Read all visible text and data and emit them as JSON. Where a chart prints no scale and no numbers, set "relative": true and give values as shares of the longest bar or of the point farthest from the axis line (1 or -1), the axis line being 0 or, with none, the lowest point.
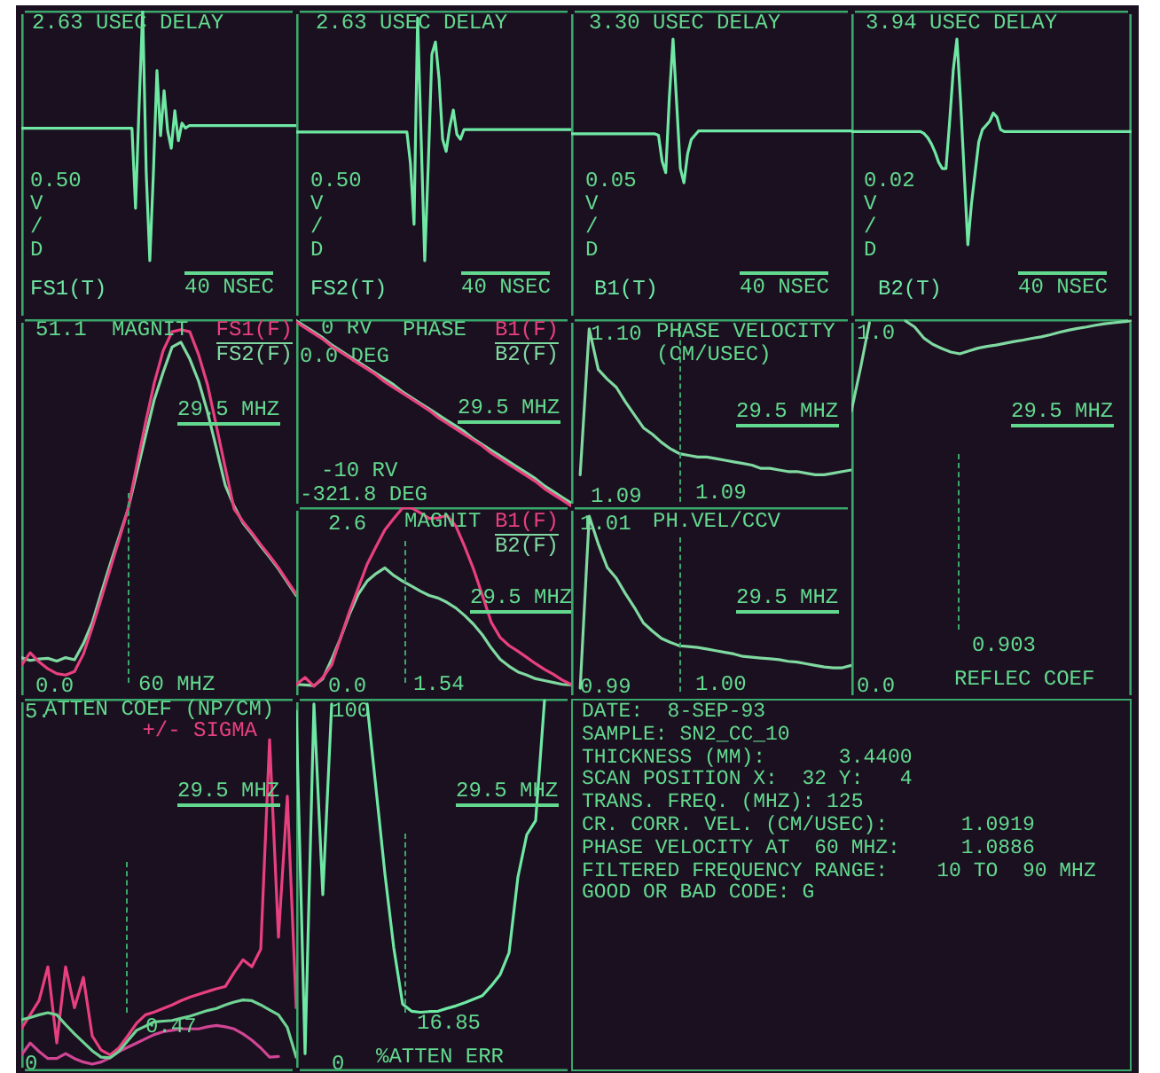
{
  "chart_data": [
    {
      "type": "line",
      "title": "2.63 USEC DELAY",
      "relative": true,
      "tick_labels": false,
      "categories": [
        null,
        null,
        null,
        null,
        null,
        null,
        null,
        null,
        null,
        null,
        null,
        null,
        null,
        null,
        null,
        null,
        null,
        null,
        null,
        null,
        null,
        null,
        null,
        null,
        null,
        null,
        null,
        null,
        null,
        null,
        null,
        null,
        null,
        null,
        null,
        null,
        null,
        null,
        null,
        null,
        null,
        null,
        null,
        null,
        null,
        null,
        null,
        null,
        null,
        null,
        null,
        null,
        null,
        null,
        null,
        null,
        null,
        null,
        null,
        null,
        null,
        null,
        null,
        null,
        null,
        null,
        null,
        null,
        null,
        null,
        null,
        null,
        null,
        null,
        null,
        null,
        null,
        null
      ],
      "series": [
        {
          "name": "FS1(T)",
          "color": "#6fe8a4",
          "values": [
            0.53,
            0.53,
            0.53,
            0.53,
            0.53,
            0.53,
            0.53,
            0.53,
            0.53,
            0.53,
            0.53,
            0.53,
            0.53,
            0.53,
            0.53,
            0.53,
            0.53,
            0.53,
            0.53,
            0.53,
            0.53,
            0.53,
            0.53,
            0.53,
            0.53,
            0.53,
            0.53,
            0.53,
            0.53,
            0.53,
            0.53,
            0.53,
            0.21,
            0.62,
            1,
            0.35,
            0,
            0.35,
            0.76,
            0.5,
            0.68,
            0.52,
            0.45,
            0.6,
            0.48,
            0.55,
            0.53,
            0.54,
            0.54,
            0.54,
            0.54,
            0.54,
            0.54,
            0.54,
            0.54,
            0.54,
            0.54,
            0.54,
            0.54,
            0.54,
            0.54,
            0.54,
            0.54,
            0.54,
            0.54,
            0.54,
            0.54,
            0.54,
            0.54,
            0.54,
            0.54,
            0.54,
            0.54,
            0.54,
            0.54,
            0.54,
            0.54,
            0.54
          ]
        }
      ],
      "annotations": [
        "0.50\nV\n/\nD",
        "40 NSEC"
      ]
    },
    {
      "type": "line",
      "title": "2.63 USEC DELAY",
      "relative": true,
      "tick_labels": false,
      "categories": [
        null,
        null,
        null,
        null,
        null,
        null,
        null,
        null,
        null,
        null,
        null,
        null,
        null,
        null,
        null,
        null,
        null,
        null,
        null,
        null,
        null,
        null,
        null,
        null,
        null,
        null,
        null,
        null,
        null,
        null,
        null,
        null,
        null,
        null,
        null,
        null,
        null,
        null,
        null,
        null,
        null,
        null,
        null,
        null,
        null,
        null,
        null,
        null,
        null,
        null,
        null,
        null,
        null,
        null,
        null,
        null,
        null,
        null,
        null,
        null,
        null,
        null,
        null,
        null,
        null,
        null,
        null,
        null,
        null,
        null,
        null,
        null,
        null,
        null,
        null,
        null,
        null,
        null
      ],
      "series": [
        {
          "name": "FS2(T)",
          "color": "#6fe8a4",
          "values": [
            0.53,
            0.53,
            0.53,
            0.53,
            0.53,
            0.53,
            0.53,
            0.53,
            0.53,
            0.53,
            0.53,
            0.53,
            0.53,
            0.53,
            0.53,
            0.53,
            0.53,
            0.53,
            0.53,
            0.53,
            0.53,
            0.53,
            0.53,
            0.53,
            0.53,
            0.53,
            0.53,
            0.53,
            0.53,
            0.53,
            0.53,
            0.53,
            0.4,
            0.15,
            1,
            0.5,
            0,
            0.4,
            0.85,
            0.9,
            0.75,
            0.5,
            0.45,
            0.55,
            0.62,
            0.52,
            0.5,
            0.54,
            0.54,
            0.54,
            0.54,
            0.54,
            0.54,
            0.54,
            0.54,
            0.54,
            0.54,
            0.54,
            0.54,
            0.54,
            0.54,
            0.54,
            0.54,
            0.54,
            0.54,
            0.54,
            0.54,
            0.54,
            0.54,
            0.54,
            0.54,
            0.54,
            0.54,
            0.54,
            0.54,
            0.54,
            0.54,
            0.54
          ]
        }
      ],
      "annotations": [
        "0.50\nV\n/\nD",
        "40 NSEC"
      ]
    },
    {
      "type": "line",
      "title": "3.30 USEC DELAY",
      "relative": true,
      "tick_labels": false,
      "categories": [
        null,
        null,
        null,
        null,
        null,
        null,
        null,
        null,
        null,
        null,
        null,
        null,
        null,
        null,
        null,
        null,
        null,
        null,
        null,
        null,
        null,
        null,
        null,
        null,
        null,
        null,
        null,
        null,
        null,
        null,
        null,
        null,
        null,
        null,
        null,
        null,
        null,
        null,
        null,
        null,
        null,
        null,
        null,
        null,
        null,
        null,
        null,
        null,
        null,
        null,
        null,
        null,
        null,
        null,
        null,
        null,
        null,
        null,
        null,
        null,
        null,
        null,
        null,
        null,
        null,
        null,
        null,
        null,
        null,
        null,
        null,
        null,
        null,
        null,
        null,
        null,
        null,
        null
      ],
      "series": [
        {
          "name": "B1(T)",
          "color": "#6fe8a4",
          "values": [
            0.34,
            0.34,
            0.34,
            0.34,
            0.34,
            0.34,
            0.34,
            0.34,
            0.34,
            0.34,
            0.34,
            0.34,
            0.34,
            0.34,
            0.34,
            0.34,
            0.34,
            0.34,
            0.34,
            0.34,
            0.34,
            0.34,
            0.34,
            0.34,
            0.33,
            0.15,
            0.07,
            0.6,
            1,
            0.55,
            0.1,
            0,
            0.2,
            0.3,
            0.33,
            0.36,
            0.36,
            0.36,
            0.36,
            0.36,
            0.36,
            0.36,
            0.36,
            0.36,
            0.36,
            0.36,
            0.36,
            0.36,
            0.36,
            0.36,
            0.36,
            0.36,
            0.36,
            0.36,
            0.36,
            0.36,
            0.36,
            0.36,
            0.36,
            0.36,
            0.36,
            0.36,
            0.36,
            0.36,
            0.36,
            0.36,
            0.36,
            0.36,
            0.36,
            0.36,
            0.36,
            0.36,
            0.36,
            0.36,
            0.36,
            0.36,
            0.36,
            0.36
          ]
        }
      ],
      "annotations": [
        "0.05\nV\n/\nD",
        "40 NSEC"
      ]
    },
    {
      "type": "line",
      "title": "3.94 USEC DELAY",
      "relative": true,
      "tick_labels": false,
      "categories": [
        null,
        null,
        null,
        null,
        null,
        null,
        null,
        null,
        null,
        null,
        null,
        null,
        null,
        null,
        null,
        null,
        null,
        null,
        null,
        null,
        null,
        null,
        null,
        null,
        null,
        null,
        null,
        null,
        null,
        null,
        null,
        null,
        null,
        null,
        null,
        null,
        null,
        null,
        null,
        null,
        null,
        null,
        null,
        null,
        null,
        null,
        null,
        null,
        null,
        null,
        null,
        null,
        null,
        null,
        null,
        null,
        null,
        null,
        null,
        null,
        null,
        null,
        null,
        null,
        null,
        null,
        null,
        null,
        null,
        null,
        null,
        null,
        null,
        null,
        null,
        null,
        null,
        null
      ],
      "series": [
        {
          "name": "B2(T)",
          "color": "#6fe8a4",
          "values": [
            0.55,
            0.55,
            0.55,
            0.55,
            0.55,
            0.55,
            0.55,
            0.55,
            0.55,
            0.55,
            0.55,
            0.55,
            0.55,
            0.55,
            0.55,
            0.55,
            0.55,
            0.55,
            0.55,
            0.55,
            0.54,
            0.52,
            0.49,
            0.45,
            0.4,
            0.37,
            0.37,
            0.6,
            0.85,
            1,
            0.7,
            0.35,
            0,
            0.2,
            0.35,
            0.5,
            0.56,
            0.58,
            0.6,
            0.64,
            0.62,
            0.56,
            0.55,
            0.55,
            0.55,
            0.55,
            0.55,
            0.55,
            0.55,
            0.55,
            0.55,
            0.55,
            0.55,
            0.55,
            0.55,
            0.55,
            0.55,
            0.55,
            0.55,
            0.55,
            0.55,
            0.55,
            0.55,
            0.55,
            0.55,
            0.55,
            0.55,
            0.55,
            0.55,
            0.55,
            0.55,
            0.55,
            0.55,
            0.55,
            0.55,
            0.55,
            0.55,
            0.55
          ]
        }
      ],
      "annotations": [
        "0.02\nV\n/\nD",
        "40 NSEC"
      ]
    },
    {
      "type": "line",
      "title": "MAGNIT",
      "tick_labels": "y",
      "categories": [
        null,
        null,
        null,
        null,
        null,
        null,
        null,
        null,
        null,
        null,
        null,
        null,
        null,
        null,
        null,
        null,
        null,
        null,
        null,
        null,
        null,
        null,
        null,
        null,
        null,
        null,
        null,
        null,
        null,
        null,
        null,
        null
      ],
      "ylim": [
        -1.8,
        52.6
      ],
      "yticks": [
        {
          "value": 0,
          "label": "0.0"
        },
        51.1
      ],
      "series": [
        {
          "name": "FS1(F)",
          "color": "#e8407f",
          "values": [
            3.0,
            4.8,
            3.5,
            2.5,
            1.8,
            1.6,
            2.1,
            4.6,
            8.4,
            12.5,
            16.7,
            20.9,
            25.2,
            31.5,
            37.7,
            43.5,
            48.1,
            50.8,
            51.1,
            50.8,
            47.5,
            43.2,
            37.3,
            31.3,
            25.4,
            23.6,
            22.0,
            20.3,
            18.7,
            17.0,
            15.1,
            13.2
          ]
        },
        {
          "name": "FS2(F)",
          "color": "#7fd9a0",
          "values": [
            4.1,
            3.7,
            3.9,
            4.0,
            3.6,
            4.1,
            3.8,
            6.1,
            9.1,
            13.3,
            17.4,
            21.3,
            25.2,
            30.5,
            35.8,
            41.1,
            45.0,
            48.6,
            49.3,
            46.9,
            43.7,
            39.3,
            34.1,
            28.8,
            25.8,
            23.4,
            21.8,
            20.1,
            18.5,
            16.8,
            14.9,
            13.0
          ]
        }
      ],
      "annotations": [
        "29.5 MHZ",
        "60 MHZ"
      ]
    },
    {
      "type": "line",
      "title": "PHASE",
      "tick_labels": "y",
      "categories": [
        null,
        null,
        null,
        null,
        null,
        null,
        null,
        null,
        null,
        null,
        null,
        null,
        null,
        null,
        null,
        null,
        null,
        null,
        null,
        null,
        null,
        null,
        null,
        null,
        null,
        null,
        null,
        null,
        null,
        null,
        null,
        null
      ],
      "ylim": [
        -12.6,
        0.6
      ],
      "yticks": [
        {
          "value": -10,
          "label": "-10 RV"
        },
        {
          "value": 0,
          "label": "0 RV"
        }
      ],
      "y2lim": [
        -350.7,
        86.6
      ],
      "y2ticks": [
        {
          "value": -321.8,
          "label": "-321.8 DEG"
        },
        {
          "value": 0,
          "label": "0.0 DEG"
        }
      ],
      "series": [
        {
          "name": "B1(F)",
          "color": "#e8407f",
          "values": [
            0.4,
            0.0,
            -0.4,
            -0.8,
            -1.3,
            -1.7,
            -2.1,
            -2.5,
            -2.9,
            -3.3,
            -3.8,
            -4.2,
            -4.6,
            -5.0,
            -5.4,
            -5.8,
            -6.3,
            -6.7,
            -7.1,
            -7.5,
            -7.9,
            -8.3,
            -8.8,
            -9.2,
            -9.6,
            -10.0,
            -10.4,
            -10.8,
            -11.3,
            -11.7,
            -12.1,
            -12.5
          ]
        },
        {
          "name": "B2(F)",
          "color": "#7fd9a0",
          "values": [
            0.5,
            0.1,
            -0.3,
            -0.7,
            -1.2,
            -1.6,
            -2.0,
            -2.4,
            -2.8,
            -3.2,
            -3.6,
            -4.0,
            -4.5,
            -4.9,
            -5.3,
            -5.7,
            -6.1,
            -6.5,
            -6.9,
            -7.3,
            -7.8,
            -8.2,
            -8.6,
            -9.0,
            -9.4,
            -9.8,
            -10.2,
            -10.6,
            -11.1,
            -11.5,
            -11.9,
            -12.3
          ]
        }
      ],
      "annotations": [
        "29.5 MHZ"
      ]
    },
    {
      "type": "line",
      "title": "PHASE VELOCITY",
      "subtitle": "(CM/USEC)",
      "tick_labels": "y",
      "categories": [
        null,
        null,
        null,
        null,
        null,
        null,
        null,
        null,
        null,
        null,
        null,
        null,
        null,
        null,
        null,
        null,
        null,
        null,
        null,
        null,
        null,
        null,
        null,
        null,
        null,
        null,
        null,
        null,
        null,
        null,
        null,
        null
      ],
      "ylim": [
        1.0893,
        1.1009
      ],
      "yticks": [
        1.09,
        {
          "value": 1.1,
          "label": "1.10"
        }
      ],
      "series": [
        {
          "color": "#7fd9a0",
          "values": [
            null,
            1.0913,
            1.1003,
            1.0978,
            1.0972,
            1.0967,
            1.0958,
            1.095,
            1.0942,
            1.0938,
            1.0933,
            1.0929,
            1.0926,
            1.0925,
            1.0924,
            1.0924,
            1.0923,
            1.0922,
            1.0921,
            1.092,
            1.0919,
            1.0917,
            1.0917,
            1.0916,
            1.0915,
            1.0915,
            1.0914,
            1.0913,
            1.0913,
            1.0914,
            1.0915,
            1.0916
          ]
        }
      ],
      "annotations": [
        "29.5 MHZ",
        "1.09"
      ]
    },
    {
      "type": "line",
      "title": "REFLEC COEF",
      "tick_labels": "y",
      "categories": [
        null,
        null,
        null,
        null,
        null,
        null,
        null,
        null,
        null,
        null,
        null,
        null,
        null,
        null,
        null,
        null,
        null,
        null,
        null,
        null,
        null,
        null,
        null,
        null,
        null,
        null,
        null,
        null,
        null,
        null,
        null,
        null
      ],
      "ylim": [
        -0.035,
        1.04
      ],
      "yticks": [
        {
          "value": 0,
          "label": "0.0"
        },
        {
          "value": 1,
          "label": "1.0"
        }
      ],
      "series": [
        {
          "color": "#7fd9a0",
          "values": [
            0.78,
            0.9,
            1.03,
            null,
            null,
            null,
            null,
            null,
            null,
            null,
            null,
            null,
            null,
            null,
            null,
            null,
            null,
            null,
            null,
            null,
            null,
            null,
            null,
            null,
            null,
            null,
            null,
            null,
            null,
            null,
            null,
            null
          ]
        },
        {
          "color": "#7fd9a0",
          "values": [
            null,
            null,
            null,
            null,
            null,
            null,
            1.035,
            1.018,
            0.987,
            0.969,
            0.957,
            0.947,
            0.942,
            0.95,
            0.958,
            0.963,
            0.967,
            0.972,
            0.977,
            0.981,
            0.986,
            0.99,
            0.996,
            1.003,
            1.009,
            1.014,
            1.018,
            1.023,
            1.027,
            1.03,
            1.033,
            1.035
          ]
        }
      ],
      "annotations": [
        "29.5 MHZ",
        "0.903"
      ]
    },
    {
      "type": "line",
      "title": "MAGNIT",
      "tick_labels": "y",
      "categories": [
        null,
        null,
        null,
        null,
        null,
        null,
        null,
        null,
        null,
        null,
        null,
        null,
        null,
        null,
        null,
        null,
        null,
        null,
        null,
        null,
        null,
        null,
        null,
        null,
        null,
        null,
        null,
        null,
        null,
        null,
        null,
        null
      ],
      "ylim": [
        -0.2,
        2.86
      ],
      "yticks": [
        {
          "value": 0,
          "label": "0.0"
        },
        2.6
      ],
      "series": [
        {
          "name": "B1(F)",
          "color": "#e8407f",
          "values": [
            0.03,
            0.14,
            0,
            0.14,
            0.34,
            0.77,
            1.19,
            1.57,
            1.95,
            2.23,
            2.5,
            2.68,
            2.85,
            2.85,
            2.77,
            2.68,
            2.69,
            2.73,
            2.56,
            2.23,
            1.87,
            1.45,
            1.02,
            0.78,
            0.65,
            0.56,
            0.46,
            0.36,
            0.27,
            0.19,
            0.1,
            0.03
          ]
        },
        {
          "name": "B2(F)",
          "color": "#7fd9a0",
          "values": [
            0.03,
            0.02,
            0.01,
            0.12,
            0.43,
            0.77,
            1.15,
            1.47,
            1.68,
            1.8,
            1.89,
            1.77,
            1.68,
            1.6,
            1.52,
            1.45,
            1.41,
            1.34,
            1.25,
            1.13,
            0.99,
            0.82,
            0.61,
            0.43,
            0.32,
            0.23,
            0.18,
            0.12,
            0.09,
            0.06,
            0.03,
            0.02
          ]
        }
      ],
      "annotations": [
        "29.5 MHZ",
        "1.54"
      ]
    },
    {
      "type": "line",
      "title": "PH.VEL/CCV",
      "tick_labels": "y",
      "categories": [
        null,
        null,
        null,
        null,
        null,
        null,
        null,
        null,
        null,
        null,
        null,
        null,
        null,
        null,
        null,
        null,
        null,
        null,
        null,
        null,
        null,
        null,
        null,
        null,
        null,
        null,
        null,
        null,
        null,
        null,
        null,
        null
      ],
      "ylim": [
        0.9885,
        1.012
      ],
      "yticks": [
        0.99,
        1.01
      ],
      "series": [
        {
          "color": "#7fd9a0",
          "values": [
            null,
            0.9898,
            1.0109,
            1.0075,
            1.0046,
            1.0033,
            1.0014,
            0.9997,
            0.9978,
            0.9968,
            0.9959,
            0.9954,
            0.995,
            0.9949,
            0.9948,
            0.9946,
            0.9944,
            0.9942,
            0.994,
            0.9937,
            0.9936,
            0.9935,
            0.9934,
            0.9933,
            0.9931,
            0.993,
            0.9928,
            0.9926,
            0.9924,
            0.9923,
            0.9923,
            0.9926
          ]
        }
      ],
      "annotations": [
        "29.5 MHZ",
        "1.00"
      ]
    },
    {
      "type": "line",
      "title": "ATTEN COEF (NP/CM)",
      "tick_labels": "y",
      "categories": [
        null,
        null,
        null,
        null,
        null,
        null,
        null,
        null,
        null,
        null,
        null,
        null,
        null,
        null,
        null,
        null,
        null,
        null,
        null,
        null,
        null,
        null,
        null,
        null,
        null,
        null,
        null,
        null,
        null,
        null,
        null,
        null
      ],
      "ylim": [
        -0.1,
        5.18
      ],
      "yticks": [
        0,
        {
          "value": 5,
          "label": "5."
        }
      ],
      "series": [
        {
          "color": "#6fd394",
          "values": [
            0.63,
            0.66,
            0.7,
            0.73,
            0.7,
            0.56,
            0.43,
            0.31,
            0.19,
            0.1,
            0.09,
            0.18,
            0.33,
            0.48,
            0.54,
            0.6,
            0.61,
            0.62,
            0.65,
            0.68,
            0.72,
            0.76,
            0.79,
            0.84,
            0.88,
            0.91,
            0.9,
            0.84,
            0.77,
            0.7,
            0.52,
            0.1
          ]
        },
        {
          "name": "+/- SIGMA",
          "color": "#e8407f",
          "values": [
            0.5,
            0.7,
            0.9,
            1.38,
            0.3,
            1.38,
            0.8,
            1.23,
            0.4,
            0.2,
            0.13,
            0.23,
            0.4,
            0.58,
            0.7,
            0.74,
            0.79,
            0.84,
            0.9,
            0.95,
            0.99,
            1.03,
            1.07,
            1.1,
            1.3,
            1.48,
            1.38,
            1.63,
            4.6,
            1.8,
            3.8,
            0.8
          ]
        },
        {
          "color": "#d04594",
          "values": [
            0.13,
            0.3,
            0.18,
            0.08,
            0.08,
            0.15,
            0.08,
            0.03,
            0,
            0.03,
            0.09,
            0.18,
            0.24,
            0.3,
            0.36,
            0.42,
            0.46,
            0.48,
            0.5,
            0.5,
            0.5,
            0.53,
            0.55,
            0.53,
            0.5,
            0.43,
            0.34,
            0.23,
            0.1,
            0.11,
            null,
            null
          ]
        }
      ],
      "annotations": [
        "29.5 MHZ",
        "0.47"
      ]
    },
    {
      "type": "line",
      "title": "%ATTEN ERR",
      "tick_labels": "y",
      "categories": [
        null,
        null,
        null,
        null,
        null,
        null,
        null,
        null,
        null,
        null,
        null,
        null,
        null,
        null,
        null,
        null,
        null,
        null,
        null,
        null,
        null,
        null,
        null,
        null,
        null,
        null,
        null,
        null,
        null,
        null,
        null,
        null
      ],
      "ylim": [
        -2,
        103.5
      ],
      "yticks": [
        0,
        100
      ],
      "series": [
        {
          "color": "#6fe8a4",
          "values": [
            100,
            3,
            102,
            48,
            102,
            null,
            null,
            null,
            null,
            null,
            null,
            null,
            null,
            null,
            null,
            null,
            null,
            null,
            null,
            null,
            null,
            null,
            null,
            null,
            null,
            null,
            null,
            null,
            null,
            null,
            null,
            null
          ]
        },
        {
          "color": "#6fe8a4",
          "values": [
            null,
            null,
            null,
            null,
            null,
            null,
            null,
            null,
            102,
            78,
            54,
            33,
            17,
            15,
            14.7,
            14.9,
            15,
            15.8,
            16.5,
            17.4,
            18.4,
            19.4,
            22.2,
            25.4,
            31.6,
            53,
            65,
            69,
            103,
            null,
            null,
            null
          ]
        }
      ],
      "annotations": [
        "29.5 MHZ",
        "16.85"
      ]
    },
    {
      "type": "other",
      "annotations": [
        "DATE:  8-SEP-93",
        "SAMPLE: SN2_CC_10",
        "THICKNESS (MM):      3.4400",
        "SCAN POSITION X:  32 Y:   4",
        "TRANS. FREQ. (MHZ): 125",
        "CR. CORR. VEL. (CM/USEC):      1.0919",
        "PHASE VELOCITY AT  60 MHZ:     1.0886",
        "FILTERED FREQUENCY RANGE:    10 TO  90 MHZ",
        "GOOD OR BAD CODE: G"
      ]
    }
  ]
}
